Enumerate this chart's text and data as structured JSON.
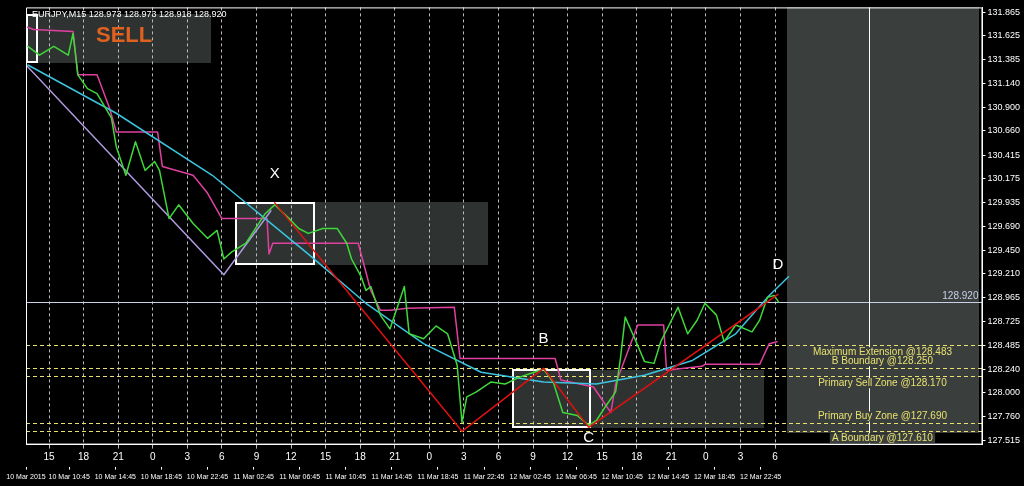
{
  "chart_data": {
    "type": "line",
    "title": "EURJPY,M15 128.973 128.973 128.918 128.920",
    "annotations": [
      "SELL",
      {
        "text": "X",
        "x": "2015-03-11T10:35",
        "y": 129.93
      },
      {
        "text": "B",
        "x": "2015-03-12T09:55",
        "y": 128.25
      },
      {
        "text": "C",
        "x": "2015-03-12T13:50",
        "y": 127.65
      },
      {
        "text": "D",
        "x": "2015-03-13T06:15",
        "y": 129.0
      }
    ],
    "xlim": [
      "2015-03-10T13:00",
      "2015-03-14T00:00"
    ],
    "xticks": [
      {
        "value": "2015-03-10T15:00",
        "label": "15"
      },
      {
        "value": "2015-03-10T18:00",
        "label": "18"
      },
      {
        "value": "2015-03-10T21:00",
        "label": "21"
      },
      {
        "value": "2015-03-11T00:00",
        "label": "0"
      },
      {
        "value": "2015-03-11T03:00",
        "label": "3"
      },
      {
        "value": "2015-03-11T06:00",
        "label": "6"
      },
      {
        "value": "2015-03-11T09:00",
        "label": "9"
      },
      {
        "value": "2015-03-11T12:00",
        "label": "12"
      },
      {
        "value": "2015-03-11T15:00",
        "label": "15"
      },
      {
        "value": "2015-03-11T18:00",
        "label": "18"
      },
      {
        "value": "2015-03-11T21:00",
        "label": "21"
      },
      {
        "value": "2015-03-12T00:00",
        "label": "0"
      },
      {
        "value": "2015-03-12T03:00",
        "label": "3"
      },
      {
        "value": "2015-03-12T06:00",
        "label": "6"
      },
      {
        "value": "2015-03-12T09:00",
        "label": "9"
      },
      {
        "value": "2015-03-12T12:00",
        "label": "12"
      },
      {
        "value": "2015-03-12T15:00",
        "label": "15"
      },
      {
        "value": "2015-03-12T18:00",
        "label": "18"
      },
      {
        "value": "2015-03-12T21:00",
        "label": "21"
      },
      {
        "value": "2015-03-13T00:00",
        "label": "0"
      },
      {
        "value": "2015-03-13T03:00",
        "label": "3"
      },
      {
        "value": "2015-03-13T06:00",
        "label": "6"
      }
    ],
    "x2lim": [
      "2015-03-10T07:00",
      "2015-03-13T18:00"
    ],
    "x2ticks": [
      {
        "value": "2015-03-10T07:00",
        "label": "10 Mar 2015"
      },
      {
        "value": "2015-03-10T10:45",
        "label": "10 Mar 10:45"
      },
      {
        "value": "2015-03-10T14:45",
        "label": "10 Mar 14:45"
      },
      {
        "value": "2015-03-10T18:45",
        "label": "10 Mar 18:45"
      },
      {
        "value": "2015-03-10T22:45",
        "label": "10 Mar 22:45"
      },
      {
        "value": "2015-03-11T02:45",
        "label": "11 Mar 02:45"
      },
      {
        "value": "2015-03-11T06:45",
        "label": "11 Mar 06:45"
      },
      {
        "value": "2015-03-11T10:45",
        "label": "11 Mar 10:45"
      },
      {
        "value": "2015-03-11T14:45",
        "label": "11 Mar 14:45"
      },
      {
        "value": "2015-03-11T18:45",
        "label": "11 Mar 18:45"
      },
      {
        "value": "2015-03-11T22:45",
        "label": "11 Mar 22:45"
      },
      {
        "value": "2015-03-12T02:45",
        "label": "12 Mar 02:45"
      },
      {
        "value": "2015-03-12T06:45",
        "label": "12 Mar 06:45"
      },
      {
        "value": "2015-03-12T10:45",
        "label": "12 Mar 10:45"
      },
      {
        "value": "2015-03-12T14:45",
        "label": "12 Mar 14:45"
      },
      {
        "value": "2015-03-12T18:45",
        "label": "12 Mar 18:45"
      },
      {
        "value": "2015-03-12T22:45",
        "label": "12 Mar 22:45"
      }
    ],
    "ylim": [
      127.475,
      131.915
    ],
    "yticks": [
      131.865,
      131.625,
      131.385,
      {
        "value": 131.14,
        "label": "131.140"
      },
      {
        "value": 130.9,
        "label": "130.900"
      },
      {
        "value": 130.66,
        "label": "130.660"
      },
      130.415,
      130.175,
      129.935,
      {
        "value": 129.69,
        "label": "129.690"
      },
      {
        "value": 129.45,
        "label": "129.450"
      },
      {
        "value": 129.21,
        "label": "129.210"
      },
      128.965,
      128.725,
      128.485,
      {
        "value": 128.24,
        "label": "128.240"
      },
      {
        "value": 128,
        "label": "128.000"
      },
      {
        "value": 127.76,
        "label": "127.760"
      },
      127.515
    ],
    "grid": "x",
    "line_style": "solid",
    "ref_lines": [
      {
        "axis": "y",
        "value": 128.92,
        "label": "128.920",
        "color": "#c8d0e8",
        "line_style": "solid"
      },
      {
        "axis": "y",
        "value": 128.483,
        "label": "Maximum Extension @128.483",
        "color": "#e8e070",
        "line_style": "dashed"
      },
      {
        "axis": "y",
        "value": 128.25,
        "label": "B Boundary @128.250",
        "color": "#e8e070",
        "line_style": "dashed"
      },
      {
        "axis": "y",
        "value": 128.17,
        "label": "Primary Sell Zone @128.170",
        "color": "#e8e070",
        "line_style": "dashed"
      },
      {
        "axis": "y",
        "value": 127.69,
        "label": "Primary Buy Zone @127.690",
        "color": "#e8e070",
        "line_style": "dashed"
      },
      {
        "axis": "y",
        "value": 127.61,
        "label": "A Boundary @127.610",
        "color": "#e8e070",
        "line_style": "dashed"
      },
      {
        "axis": "x",
        "value": "2015-03-13T14:10",
        "color": "#ffffff",
        "line_style": "solid"
      }
    ],
    "series": [
      {
        "type": "line",
        "color": "#b09ae0",
        "x": [
          "2015-03-10T13:00",
          "2015-03-11T06:10",
          "2015-03-11T10:15"
        ],
        "values": [
          131.33,
          129.2,
          129.85
        ]
      },
      {
        "type": "line",
        "color": "#e040a0",
        "x": [
          "2015-03-10T13:00",
          "2015-03-10T13:40",
          "2015-03-10T17:05",
          "2015-03-10T17:30",
          "2015-03-10T19:10",
          "2015-03-10T20:15",
          "2015-03-10T20:50",
          "2015-03-11T00:25",
          "2015-03-11T00:50",
          "2015-03-11T03:30",
          "2015-03-11T04:45",
          "2015-03-11T06:00",
          "2015-03-11T09:55",
          "2015-03-11T10:05",
          "2015-03-11T10:25",
          "2015-03-11T17:50",
          "2015-03-11T18:55",
          "2015-03-11T19:45",
          "2015-03-11T20:35",
          "2015-03-11T22:05",
          "2015-03-12T02:10",
          "2015-03-12T02:40",
          "2015-03-12T10:55",
          "2015-03-12T11:25",
          "2015-03-12T14:15",
          "2015-03-12T15:45",
          "2015-03-12T16:10",
          "2015-03-12T18:05",
          "2015-03-12T20:20",
          "2015-03-12T20:35",
          "2015-03-12T23:40",
          "2015-03-12T23:55",
          "2015-03-13T04:40",
          "2015-03-13T05:30",
          "2015-03-13T06:10"
        ],
        "values": [
          131.72,
          131.69,
          131.67,
          131.23,
          131.23,
          130.89,
          130.65,
          130.65,
          130.3,
          130.21,
          130.03,
          129.77,
          129.77,
          129.41,
          129.52,
          129.52,
          129.04,
          128.84,
          128.84,
          128.86,
          128.87,
          128.35,
          128.35,
          128.13,
          128.06,
          127.8,
          128.09,
          128.69,
          128.69,
          128.23,
          128.27,
          128.29,
          128.29,
          128.5,
          128.52
        ]
      },
      {
        "type": "line",
        "color": "#3bc4e0",
        "x": [
          "2015-03-10T13:10",
          "2015-03-10T20:50",
          "2015-03-11T05:10",
          "2015-03-11T13:30",
          "2015-03-11T18:30",
          "2015-03-11T23:30",
          "2015-03-12T04:30",
          "2015-03-12T09:55",
          "2015-03-12T14:30",
          "2015-03-12T18:40",
          "2015-03-12T22:50",
          "2015-03-13T02:35",
          "2015-03-13T05:30",
          "2015-03-13T07:10"
        ],
        "values": [
          131.33,
          130.84,
          130.21,
          129.41,
          128.91,
          128.5,
          128.21,
          128.11,
          128.09,
          128.18,
          128.33,
          128.6,
          128.99,
          129.18
        ]
      },
      {
        "type": "line",
        "color": "#3fd83a",
        "x": [
          "2015-03-10T13:10",
          "2015-03-10T14:10",
          "2015-03-10T15:25",
          "2015-03-10T16:40",
          "2015-03-10T17:05",
          "2015-03-10T17:30",
          "2015-03-10T18:20",
          "2015-03-10T19:10",
          "2015-03-10T20:25",
          "2015-03-10T20:50",
          "2015-03-10T21:40",
          "2015-03-10T22:30",
          "2015-03-10T23:20",
          "2015-03-11T00:10",
          "2015-03-11T00:35",
          "2015-03-11T01:25",
          "2015-03-11T02:15",
          "2015-03-11T03:30",
          "2015-03-11T04:45",
          "2015-03-11T05:35",
          "2015-03-11T06:10",
          "2015-03-11T06:50",
          "2015-03-11T08:05",
          "2015-03-11T08:55",
          "2015-03-11T09:45",
          "2015-03-11T10:35",
          "2015-03-11T11:50",
          "2015-03-11T12:40",
          "2015-03-11T13:30",
          "2015-03-11T14:45",
          "2015-03-11T16:00",
          "2015-03-11T16:50",
          "2015-03-11T17:15",
          "2015-03-11T18:05",
          "2015-03-11T18:30",
          "2015-03-11T18:55",
          "2015-03-11T19:45",
          "2015-03-11T20:35",
          "2015-03-11T21:50",
          "2015-03-11T22:15",
          "2015-03-11T23:30",
          "2015-03-12T00:35",
          "2015-03-12T01:35",
          "2015-03-12T02:25",
          "2015-03-12T02:50",
          "2015-03-12T03:15",
          "2015-03-12T04:05",
          "2015-03-12T05:20",
          "2015-03-12T06:35",
          "2015-03-12T07:50",
          "2015-03-12T09:05",
          "2015-03-12T09:55",
          "2015-03-12T10:45",
          "2015-03-12T11:35",
          "2015-03-12T12:50",
          "2015-03-12T13:50",
          "2015-03-12T14:30",
          "2015-03-12T15:20",
          "2015-03-12T16:10",
          "2015-03-12T16:35",
          "2015-03-12T17:00",
          "2015-03-12T17:50",
          "2015-03-12T18:40",
          "2015-03-12T19:30",
          "2015-03-12T20:05",
          "2015-03-12T21:35",
          "2015-03-12T22:25",
          "2015-03-12T23:15",
          "2015-03-12T23:55",
          "2015-03-13T00:55",
          "2015-03-13T01:35",
          "2015-03-13T02:35",
          "2015-03-13T04:00",
          "2015-03-13T04:40",
          "2015-03-13T05:20",
          "2015-03-13T05:55",
          "2015-03-13T06:20"
        ],
        "values": [
          131.52,
          131.43,
          131.52,
          131.43,
          131.65,
          131.23,
          131.09,
          131.04,
          130.79,
          130.5,
          130.21,
          130.55,
          130.26,
          130.35,
          130.26,
          129.77,
          129.91,
          129.72,
          129.57,
          129.65,
          129.36,
          129.43,
          129.52,
          129.67,
          129.82,
          129.91,
          129.77,
          129.67,
          129.62,
          129.67,
          129.67,
          129.52,
          129.36,
          129.18,
          129.04,
          129.08,
          128.79,
          128.65,
          129.08,
          128.6,
          128.55,
          128.68,
          128.6,
          128.28,
          127.7,
          127.96,
          128.01,
          128.11,
          128.09,
          128.16,
          128.21,
          128.24,
          128.11,
          127.8,
          127.77,
          127.67,
          127.72,
          127.87,
          128.01,
          128.35,
          128.77,
          128.55,
          128.32,
          128.3,
          128.52,
          128.87,
          128.6,
          128.74,
          128.91,
          128.79,
          128.52,
          128.69,
          128.62,
          128.74,
          128.97,
          128.99,
          128.92
        ]
      },
      {
        "type": "line",
        "color": "#e01010",
        "x": [
          "2015-03-11T10:35",
          "2015-03-12T02:50",
          "2015-03-12T09:55",
          "2015-03-12T13:50",
          "2015-03-13T06:15"
        ],
        "values": [
          129.93,
          127.61,
          128.25,
          127.65,
          129.0
        ]
      }
    ]
  }
}
